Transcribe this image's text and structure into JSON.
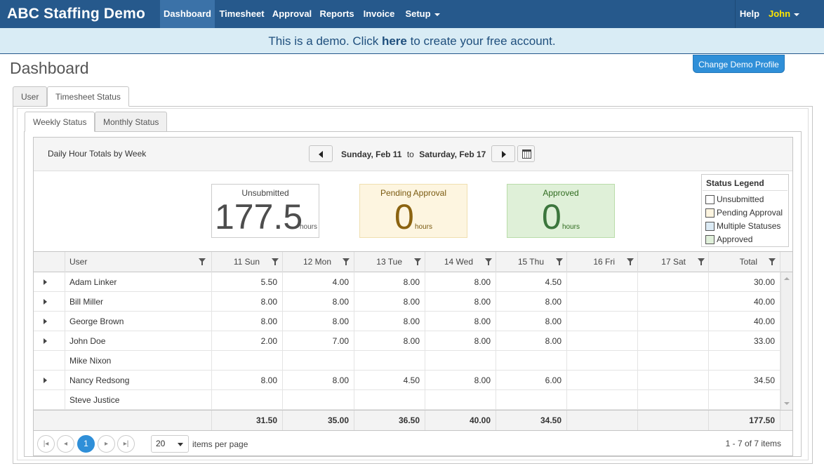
{
  "nav": {
    "brand": "ABC Staffing Demo",
    "items": [
      "Dashboard",
      "Timesheet",
      "Approval",
      "Reports",
      "Invoice",
      "Setup"
    ],
    "active": "Dashboard",
    "help": "Help",
    "user": "John"
  },
  "banner": {
    "prefix": "This is a demo. Click ",
    "link": "here",
    "suffix": " to create your free account."
  },
  "page": {
    "title": "Dashboard",
    "change_profile": "Change Demo Profile"
  },
  "outer_tabs": [
    "User",
    "Timesheet Status"
  ],
  "outer_active": "Timesheet Status",
  "inner_tabs": [
    "Weekly Status",
    "Monthly Status"
  ],
  "inner_active": "Weekly Status",
  "card": {
    "title": "Daily Hour Totals by Week",
    "range_start": "Sunday, Feb 11",
    "range_sep": "to",
    "range_end": "Saturday, Feb 17"
  },
  "summary": {
    "unsubmitted": {
      "label": "Unsubmitted",
      "value": "177.5",
      "unit": "hours"
    },
    "pending": {
      "label": "Pending Approval",
      "value": "0",
      "unit": "hours"
    },
    "approved": {
      "label": "Approved",
      "value": "0",
      "unit": "hours"
    }
  },
  "legend": {
    "title": "Status Legend",
    "items": [
      {
        "label": "Unsubmitted",
        "color": "#ffffff"
      },
      {
        "label": "Pending Approval",
        "color": "#fdf5e0"
      },
      {
        "label": "Multiple Statuses",
        "color": "#dcebf5"
      },
      {
        "label": "Approved",
        "color": "#e0f0da"
      }
    ]
  },
  "grid": {
    "columns": [
      "User",
      "11 Sun",
      "12 Mon",
      "13 Tue",
      "14 Wed",
      "15 Thu",
      "16 Fri",
      "17 Sat",
      "Total"
    ],
    "rows": [
      {
        "user": "Adam Linker",
        "expandable": true,
        "values": [
          "5.50",
          "4.00",
          "8.00",
          "8.00",
          "4.50",
          "",
          "",
          "30.00"
        ]
      },
      {
        "user": "Bill Miller",
        "expandable": true,
        "values": [
          "8.00",
          "8.00",
          "8.00",
          "8.00",
          "8.00",
          "",
          "",
          "40.00"
        ]
      },
      {
        "user": "George Brown",
        "expandable": true,
        "values": [
          "8.00",
          "8.00",
          "8.00",
          "8.00",
          "8.00",
          "",
          "",
          "40.00"
        ]
      },
      {
        "user": "John Doe",
        "expandable": true,
        "values": [
          "2.00",
          "7.00",
          "8.00",
          "8.00",
          "8.00",
          "",
          "",
          "33.00"
        ]
      },
      {
        "user": "Mike Nixon",
        "expandable": false,
        "values": [
          "",
          "",
          "",
          "",
          "",
          "",
          "",
          ""
        ]
      },
      {
        "user": "Nancy Redsong",
        "expandable": true,
        "values": [
          "8.00",
          "8.00",
          "4.50",
          "8.00",
          "6.00",
          "",
          "",
          "34.50"
        ]
      },
      {
        "user": "Steve Justice",
        "expandable": false,
        "values": [
          "",
          "",
          "",
          "",
          "",
          "",
          "",
          ""
        ]
      }
    ],
    "totals": [
      "31.50",
      "35.00",
      "36.50",
      "40.00",
      "34.50",
      "",
      "",
      "177.50"
    ]
  },
  "pager": {
    "current": "1",
    "page_size": "20",
    "items_per_page": "items per page",
    "info": "1 - 7 of 7 items"
  }
}
